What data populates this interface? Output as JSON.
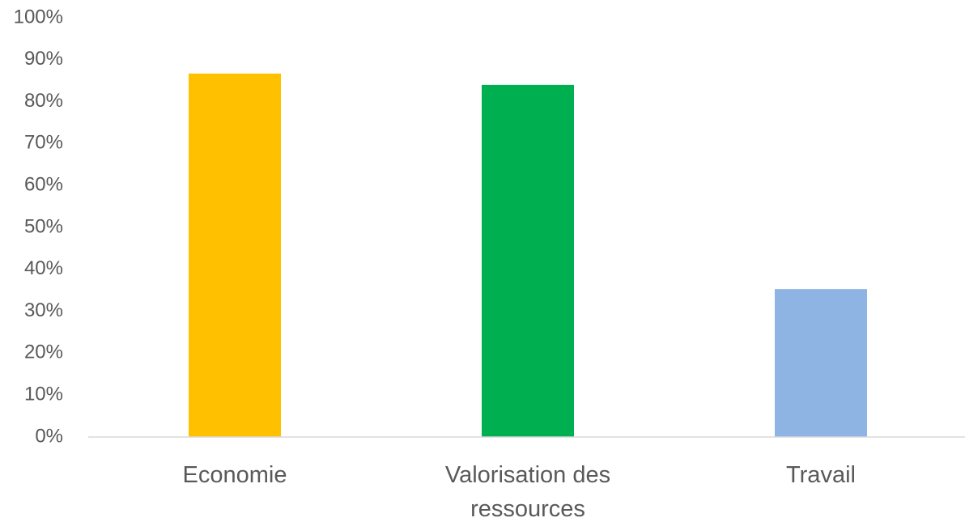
{
  "chart_data": {
    "type": "bar",
    "categories": [
      "Economie",
      "Valorisation des ressources",
      "Travail"
    ],
    "values": [
      86.7,
      84,
      35.3
    ],
    "colors": [
      "#ffc000",
      "#00b050",
      "#8eb4e3"
    ],
    "ylim": [
      0,
      100
    ],
    "yticks": [
      {
        "value": 0,
        "label": "0%"
      },
      {
        "value": 10,
        "label": "10%"
      },
      {
        "value": 20,
        "label": "20%"
      },
      {
        "value": 30,
        "label": "30%"
      },
      {
        "value": 40,
        "label": "40%"
      },
      {
        "value": 50,
        "label": "50%"
      },
      {
        "value": 60,
        "label": "60%"
      },
      {
        "value": 70,
        "label": "70%"
      },
      {
        "value": 80,
        "label": "80%"
      },
      {
        "value": 90,
        "label": "90%"
      },
      {
        "value": 100,
        "label": "100%"
      }
    ],
    "grid": false
  }
}
